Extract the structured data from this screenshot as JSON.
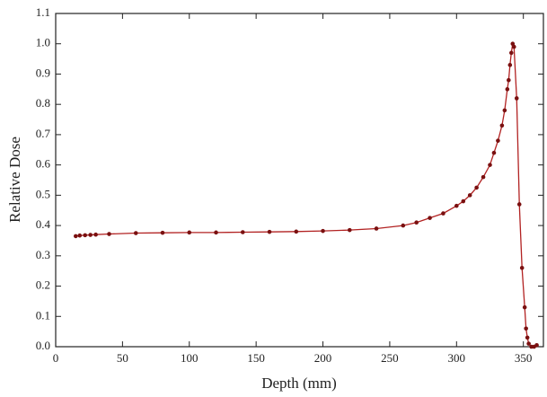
{
  "chart_data": {
    "type": "line",
    "x_label": "Depth (mm)",
    "y_label": "Relative Dose",
    "x": [
      15,
      18,
      22,
      26,
      30,
      40,
      60,
      80,
      100,
      120,
      140,
      160,
      180,
      200,
      220,
      240,
      260,
      270,
      280,
      290,
      300,
      305,
      310,
      315,
      320,
      325,
      328,
      331,
      334,
      336,
      338,
      339,
      340,
      341,
      342,
      343,
      345,
      347,
      349,
      351,
      352,
      353,
      354,
      356,
      358,
      360
    ],
    "values": [
      0.365,
      0.367,
      0.368,
      0.369,
      0.37,
      0.372,
      0.375,
      0.376,
      0.377,
      0.377,
      0.378,
      0.379,
      0.38,
      0.382,
      0.385,
      0.39,
      0.4,
      0.41,
      0.425,
      0.44,
      0.465,
      0.48,
      0.5,
      0.525,
      0.56,
      0.6,
      0.64,
      0.68,
      0.73,
      0.78,
      0.85,
      0.88,
      0.93,
      0.97,
      1.0,
      0.99,
      0.82,
      0.47,
      0.26,
      0.13,
      0.06,
      0.03,
      0.01,
      0.0,
      0.0,
      0.005
    ],
    "color": "#b22222",
    "marker_color": "#7a1010",
    "xlim": [
      0,
      365
    ],
    "xticks": [
      0,
      50,
      100,
      150,
      200,
      250,
      300,
      350
    ],
    "ylim": [
      0,
      1.1
    ],
    "yticks": [
      {
        "value": 0,
        "label": "0.0"
      },
      0.1,
      0.2,
      0.3,
      0.4,
      0.5,
      0.6,
      0.7,
      0.8,
      0.9,
      {
        "value": 1,
        "label": "1.0"
      },
      1.1
    ]
  }
}
